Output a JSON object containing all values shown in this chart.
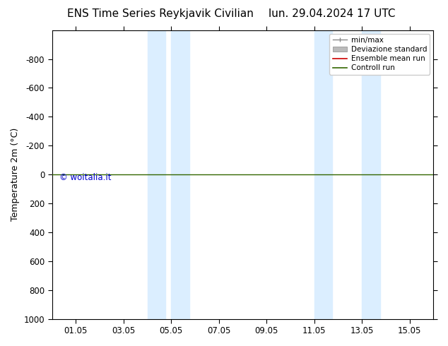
{
  "title_left": "ENS Time Series Reykjavik Civilian",
  "title_right": "lun. 29.04.2024 17 UTC",
  "ylabel": "Temperature 2m (°C)",
  "watermark": "© woitalia.it",
  "watermark_color": "#0000cc",
  "ylim_bottom": 1000,
  "ylim_top": -1000,
  "yticks": [
    -800,
    -600,
    -400,
    -200,
    0,
    200,
    400,
    600,
    800,
    1000
  ],
  "xtick_labels": [
    "01.05",
    "03.05",
    "05.05",
    "07.05",
    "09.05",
    "11.05",
    "13.05",
    "15.05"
  ],
  "xtick_positions": [
    1,
    3,
    5,
    7,
    9,
    11,
    13,
    15
  ],
  "xlim": [
    0.0,
    16.0
  ],
  "shaded_bands": [
    {
      "xmin": 4.0,
      "xmax": 4.75,
      "color": "#dbeeff"
    },
    {
      "xmin": 5.0,
      "xmax": 5.75,
      "color": "#dbeeff"
    },
    {
      "xmin": 11.0,
      "xmax": 11.75,
      "color": "#dbeeff"
    },
    {
      "xmin": 13.0,
      "xmax": 13.75,
      "color": "#dbeeff"
    }
  ],
  "control_run_y": 0,
  "control_run_color": "#336600",
  "ensemble_mean_color": "#cc0000",
  "minmax_color": "#888888",
  "std_fill_color": "#cccccc",
  "background_color": "#ffffff",
  "legend_labels": [
    "min/max",
    "Deviazione standard",
    "Ensemble mean run",
    "Controll run"
  ],
  "legend_line_colors": [
    "#888888",
    "#bbbbbb",
    "#cc0000",
    "#336600"
  ],
  "font_family": "DejaVu Sans",
  "title_fontsize": 11,
  "tick_fontsize": 8.5,
  "ylabel_fontsize": 9
}
